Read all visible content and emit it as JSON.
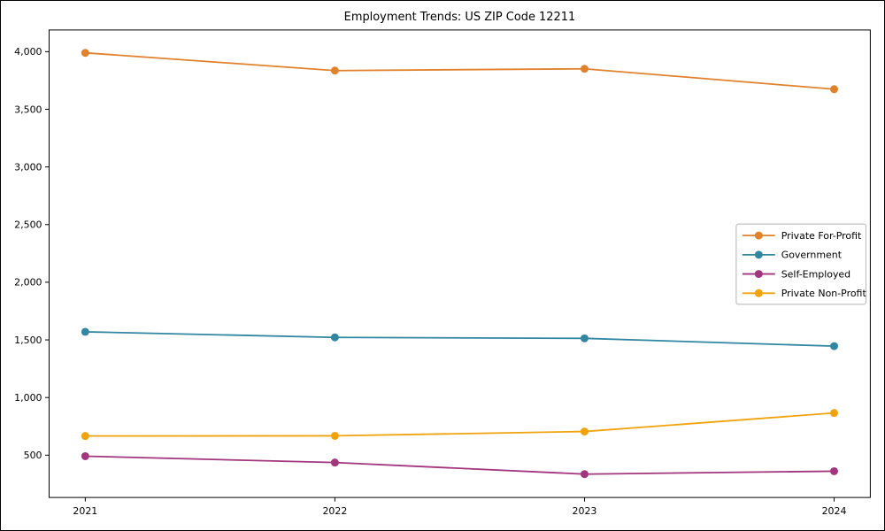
{
  "figure": {
    "background": "#ffffff",
    "border_color": "#000000",
    "axes_edge_color": "#000000",
    "legend_border_color": "#b4b4b4"
  },
  "chart_data": {
    "type": "line",
    "title": "Employment Trends: US ZIP Code 12211",
    "xlabel": "",
    "ylabel": "",
    "x": [
      2021,
      2022,
      2023,
      2024
    ],
    "xtick_labels": [
      "2021",
      "2022",
      "2023",
      "2024"
    ],
    "yticks": [
      500,
      1000,
      1500,
      2000,
      2500,
      3000,
      3500,
      4000
    ],
    "ytick_labels": [
      "500",
      "1,000",
      "1,500",
      "2,000",
      "2,500",
      "3,000",
      "3,500",
      "4,000"
    ],
    "ylim": [
      133,
      4188
    ],
    "grid": false,
    "marker": "circle",
    "legend": {
      "position": "center-right",
      "items": [
        "Private For-Profit",
        "Government",
        "Self-Employed",
        "Private Non-Profit"
      ]
    },
    "series": [
      {
        "name": "Private For-Profit",
        "color": "#E1812C",
        "values": [
          3990,
          3836,
          3851,
          3675
        ]
      },
      {
        "name": "Government",
        "color": "#3187A2",
        "values": [
          1570,
          1522,
          1513,
          1446
        ]
      },
      {
        "name": "Self-Employed",
        "color": "#A2357E",
        "values": [
          491,
          436,
          336,
          361
        ]
      },
      {
        "name": "Private Non-Profit",
        "color": "#F0A30C",
        "values": [
          666,
          668,
          705,
          866
        ]
      }
    ]
  }
}
